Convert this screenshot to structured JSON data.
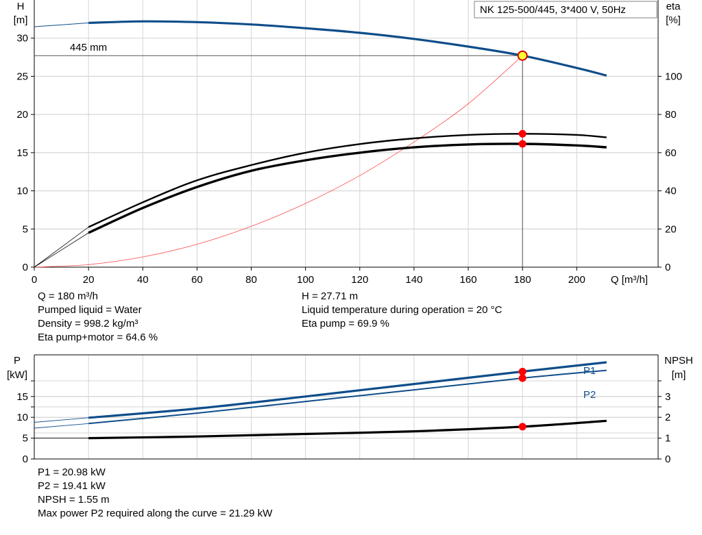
{
  "chart_data": [
    {
      "type": "line",
      "title": "NK 125-500/445, 3*400 V, 50Hz",
      "y_left_label": "H",
      "y_left_unit": "[m]",
      "y_right_label": "eta",
      "y_right_unit": "[%]",
      "x_label": "Q [m³/h]",
      "x_ticks": [
        0,
        20,
        40,
        60,
        80,
        100,
        120,
        140,
        160,
        180,
        200
      ],
      "y_left_ticks": [
        0,
        5,
        10,
        15,
        20,
        25,
        30
      ],
      "y_right_ticks": [
        0,
        20,
        40,
        60,
        80,
        100
      ],
      "xlim": [
        0,
        230
      ],
      "ylim_left": [
        0,
        35
      ],
      "ylim_right": [
        0,
        140
      ],
      "grid": true,
      "impeller_label": "445 mm",
      "operating_point": {
        "q": 180,
        "h": 27.71,
        "eta_pump": 69.9,
        "eta_pump_motor": 64.6
      },
      "series": [
        {
          "key": "head",
          "axis": "left",
          "color": "#0e4d8a",
          "points": [
            [
              0,
              31.5
            ],
            [
              20,
              32
            ],
            [
              40,
              32.2
            ],
            [
              60,
              32.1
            ],
            [
              80,
              31.8
            ],
            [
              100,
              31.3
            ],
            [
              120,
              30.7
            ],
            [
              140,
              29.9
            ],
            [
              160,
              28.9
            ],
            [
              180,
              27.71
            ],
            [
              200,
              26.1
            ],
            [
              211,
              25.1
            ]
          ]
        },
        {
          "key": "eta-pump",
          "axis": "right",
          "color": "#000000",
          "points": [
            [
              0,
              0
            ],
            [
              20,
              21
            ],
            [
              40,
              34
            ],
            [
              60,
              45.5
            ],
            [
              80,
              53.5
            ],
            [
              100,
              60
            ],
            [
              120,
              64.5
            ],
            [
              140,
              67.5
            ],
            [
              160,
              69.3
            ],
            [
              180,
              69.9
            ],
            [
              200,
              69.3
            ],
            [
              211,
              68
            ]
          ]
        },
        {
          "key": "eta-pump-motor",
          "axis": "right",
          "color": "#000000",
          "points": [
            [
              0,
              0
            ],
            [
              20,
              18
            ],
            [
              40,
              31
            ],
            [
              60,
              42
            ],
            [
              80,
              50.5
            ],
            [
              100,
              56
            ],
            [
              120,
              60
            ],
            [
              140,
              62.8
            ],
            [
              160,
              64.3
            ],
            [
              180,
              64.6
            ],
            [
              200,
              63.8
            ],
            [
              211,
              62.8
            ]
          ]
        },
        {
          "key": "system-curve",
          "axis": "left",
          "color": "#ff4a4a",
          "points": [
            [
              0,
              0
            ],
            [
              20,
              0.33
            ],
            [
              40,
              1.34
            ],
            [
              60,
              3.0
            ],
            [
              80,
              5.35
            ],
            [
              100,
              8.35
            ],
            [
              120,
              12.0
            ],
            [
              140,
              16.4
            ],
            [
              160,
              21.4
            ],
            [
              180,
              27.71
            ]
          ]
        }
      ]
    },
    {
      "type": "line",
      "y_left_label": "P",
      "y_left_unit": "[kW]",
      "y_right_label": "NPSH",
      "y_right_unit": "[m]",
      "y_left_ticks": [
        0,
        5,
        10,
        15
      ],
      "y_right_ticks": [
        0,
        1,
        2,
        3
      ],
      "xlim": [
        0,
        230
      ],
      "ylim_left": [
        0,
        25
      ],
      "ylim_right": [
        0,
        5
      ],
      "grid": true,
      "series": [
        {
          "key": "P1",
          "name": "P1",
          "axis": "left",
          "color": "#0e4d8a",
          "points": [
            [
              0,
              8.8
            ],
            [
              20,
              9.9
            ],
            [
              60,
              12.1
            ],
            [
              100,
              15.0
            ],
            [
              140,
              18.0
            ],
            [
              180,
              20.98
            ],
            [
              211,
              23.2
            ]
          ]
        },
        {
          "key": "P2",
          "name": "P2",
          "axis": "left",
          "color": "#0e4d8a",
          "points": [
            [
              0,
              7.4
            ],
            [
              20,
              8.5
            ],
            [
              60,
              11.0
            ],
            [
              100,
              13.8
            ],
            [
              140,
              16.6
            ],
            [
              180,
              19.41
            ],
            [
              211,
              21.29
            ]
          ]
        },
        {
          "key": "NPSH",
          "axis": "right",
          "color": "#000000",
          "points": [
            [
              0,
              1.0
            ],
            [
              20,
              1.0
            ],
            [
              60,
              1.08
            ],
            [
              100,
              1.2
            ],
            [
              140,
              1.33
            ],
            [
              180,
              1.55
            ],
            [
              211,
              1.83
            ]
          ]
        }
      ]
    }
  ],
  "info_top_left": [
    "Q = 180 m³/h",
    "Pumped liquid = Water",
    "Density = 998.2 kg/m³",
    "Eta pump+motor = 64.6 %"
  ],
  "info_top_right": [
    "H = 27.71 m",
    "Liquid temperature during operation = 20 °C",
    "Eta pump = 69.9 %"
  ],
  "info_bottom": [
    "P1 = 20.98 kW",
    "P2 = 19.41 kW",
    "NPSH = 1.55 m",
    "Max power P2 required along the curve = 21.29 kW"
  ]
}
